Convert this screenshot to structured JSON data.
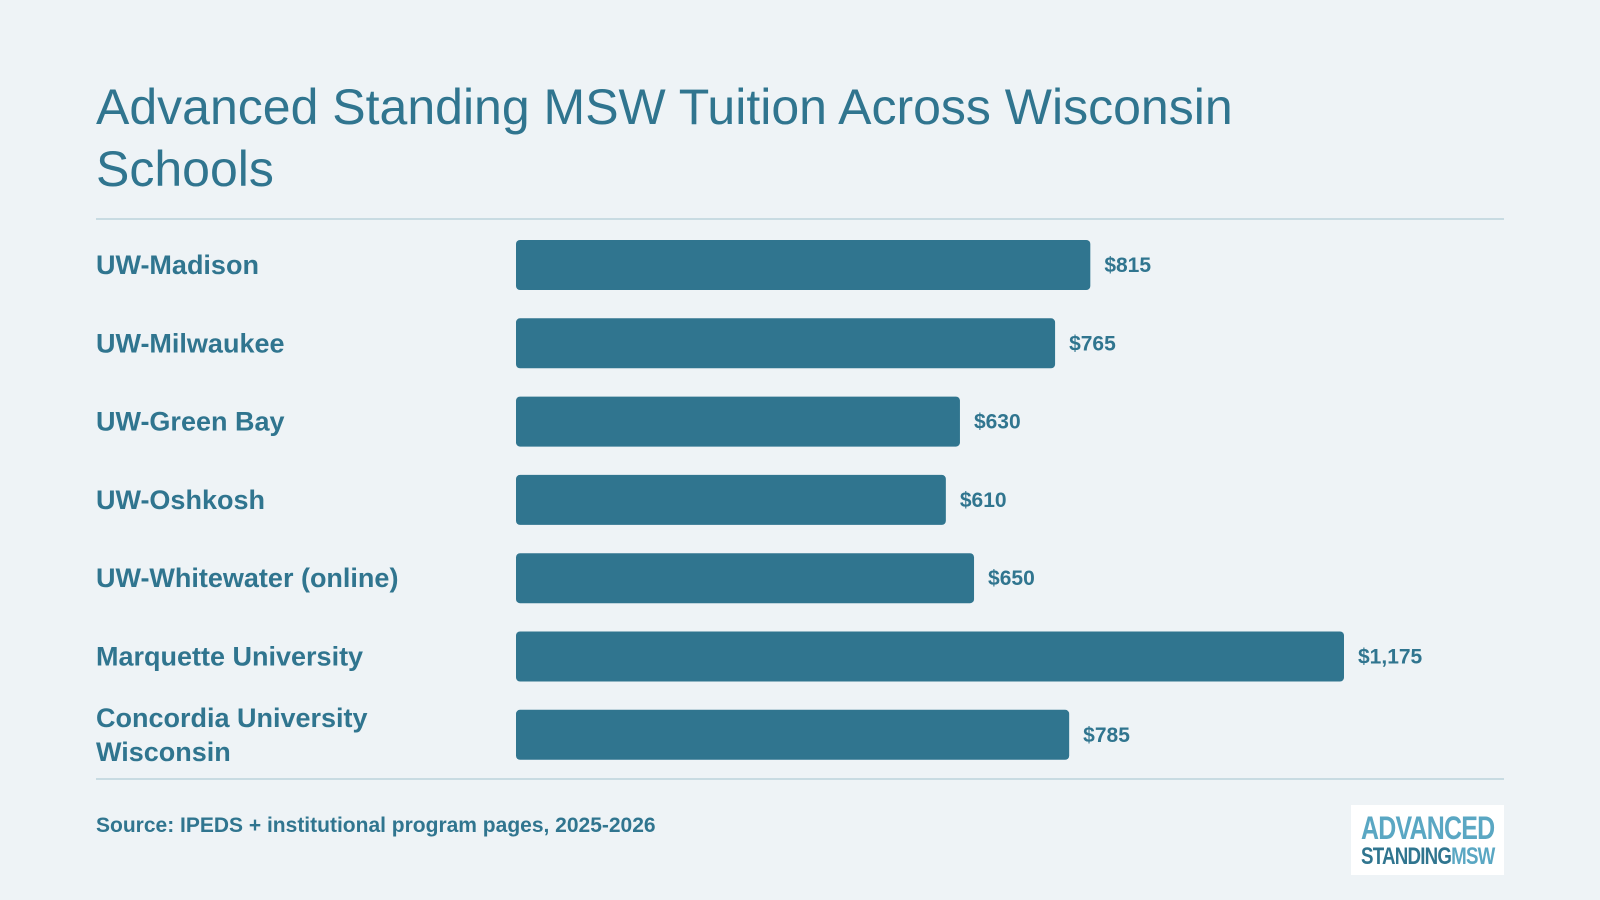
{
  "header": {
    "title": "Advanced Standing MSW Tuition Across Wisconsin Schools"
  },
  "footer": {
    "source": "Source: IPEDS + institutional program pages, 2025-2026"
  },
  "logo": {
    "line1": "ADVANCED",
    "line2_part1": "STANDING",
    "line2_part2": "MSW"
  },
  "colors": {
    "background": "#eef3f6",
    "bar": "#30758f",
    "text": "#30758f",
    "divider": "#c8dbe2",
    "logo_accent": "#5aa7c3"
  },
  "chart_data": {
    "type": "bar",
    "orientation": "horizontal",
    "title": "Advanced Standing MSW Tuition Across Wisconsin Schools",
    "xlabel": "",
    "ylabel": "",
    "grid": false,
    "legend": "none",
    "categories": [
      "UW-Madison",
      "UW-Milwaukee",
      "UW-Green Bay",
      "UW-Oshkosh",
      "UW-Whitewater (online)",
      "Marquette University",
      "Concordia University Wisconsin"
    ],
    "category_label_lines": [
      [
        "UW-Madison"
      ],
      [
        "UW-Milwaukee"
      ],
      [
        "UW-Green Bay"
      ],
      [
        "UW-Oshkosh"
      ],
      [
        "UW-Whitewater (online)"
      ],
      [
        "Marquette University"
      ],
      [
        "Concordia University",
        "Wisconsin"
      ]
    ],
    "values": [
      815,
      765,
      630,
      610,
      650,
      1175,
      785
    ],
    "value_labels": [
      "$815",
      "$765",
      "$630",
      "$610",
      "$650",
      "$1,175",
      "$785"
    ],
    "xlim": [
      0,
      1175
    ]
  }
}
